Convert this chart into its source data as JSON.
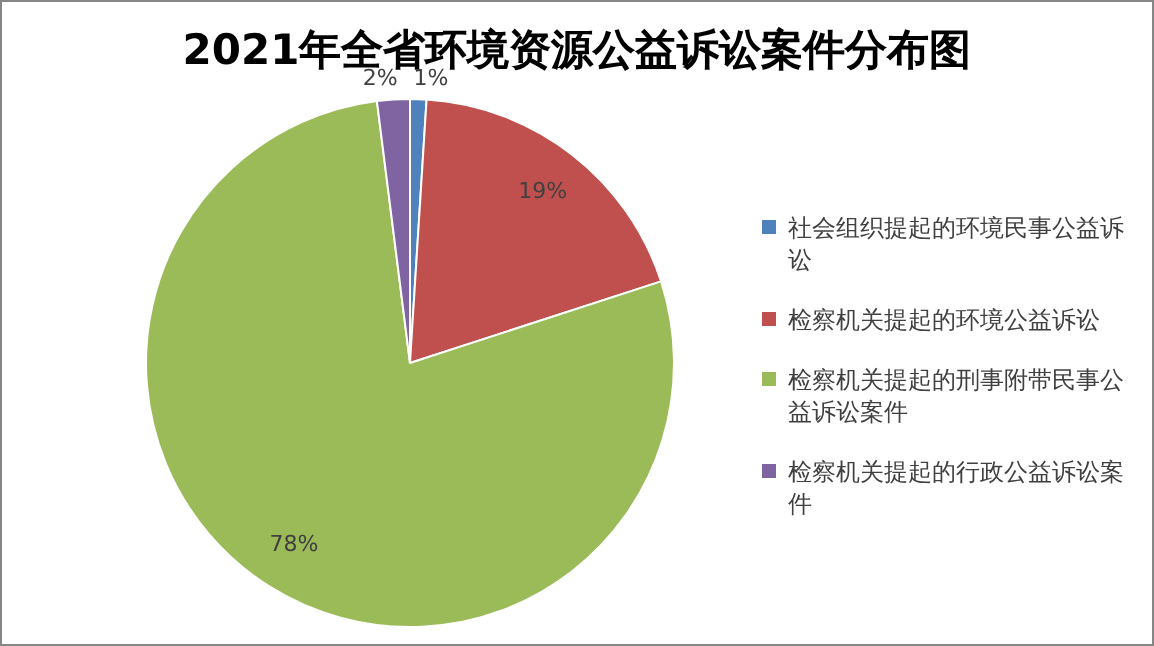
{
  "chart_data": {
    "type": "pie",
    "title": "2021年全省环境资源公益诉讼案件分布图",
    "categories": [
      "社会组织提起的环境民事公益诉讼",
      "检察机关提起的环境公益诉讼",
      "检察机关提起的刑事附带民事公益诉讼案件",
      "检察机关提起的行政公益诉讼案件"
    ],
    "values": [
      1,
      19,
      78,
      2
    ],
    "colors": [
      "#4f81bd",
      "#c0504d",
      "#9bbb59",
      "#8064a2"
    ],
    "value_labels": [
      "1%",
      "19%",
      "78%",
      "2%"
    ],
    "legend": "right"
  }
}
